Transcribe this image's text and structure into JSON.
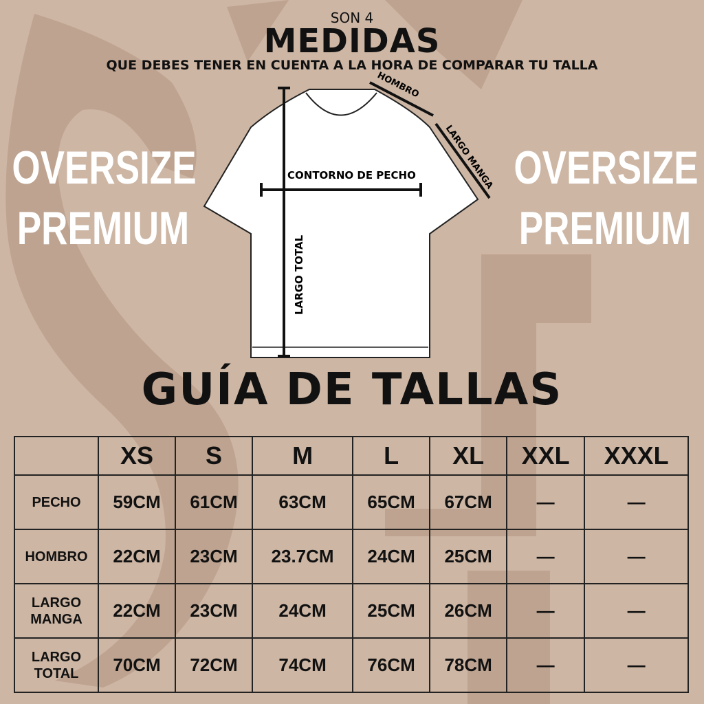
{
  "header": {
    "pre_title": "SON 4",
    "title": "MEDIDAS",
    "subtitle": "QUE DEBES TENER EN CUENTA A LA HORA DE COMPARAR TU TALLA"
  },
  "side_text": {
    "line1": "OVERSIZE",
    "line2": "PREMIUM"
  },
  "diagram": {
    "hombro": "HOMBRO",
    "largo_manga": "LARGO MANGA",
    "contorno": "CONTORNO DE PECHO",
    "largo_total": "LARGO TOTAL"
  },
  "guide_title": "GUÍA DE TALLAS",
  "table": {
    "sizes": [
      "XS",
      "S",
      "M",
      "L",
      "XL",
      "XXL",
      "XXXL"
    ],
    "rows": [
      {
        "label": "PECHO",
        "values": [
          "59CM",
          "61CM",
          "63CM",
          "65CM",
          "67CM",
          "—",
          "—"
        ]
      },
      {
        "label": "HOMBRO",
        "values": [
          "22CM",
          "23CM",
          "23.7CM",
          "24CM",
          "25CM",
          "—",
          "—"
        ]
      },
      {
        "label": "LARGO MANGA",
        "values": [
          "22CM",
          "23CM",
          "24CM",
          "25CM",
          "26CM",
          "—",
          "—"
        ]
      },
      {
        "label": "LARGO TOTAL",
        "values": [
          "70CM",
          "72CM",
          "74CM",
          "76CM",
          "78CM",
          "—",
          "—"
        ]
      }
    ]
  },
  "colors": {
    "background": "#cdb6a4",
    "watermark": "#bea390",
    "text": "#111111",
    "side_text": "#ffffff"
  }
}
